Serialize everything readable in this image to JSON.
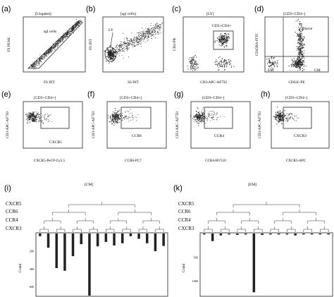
{
  "panels": {
    "a": {
      "letter": "(a)",
      "title": "[Ungated]",
      "gate": "sgl cells",
      "xlabel": "FS INT",
      "ylabel": "FS PEAK",
      "xticks": [
        "0",
        "200",
        "400",
        "600",
        "800",
        "1000"
      ],
      "yticks": [
        "200",
        "400",
        "600",
        "800",
        "1000"
      ]
    },
    "b": {
      "letter": "(b)",
      "title": "[sgl cells]",
      "gate": "LY",
      "xlabel": "SS INT",
      "ylabel": "FS INT",
      "xticks": [
        "0",
        "200",
        "400",
        "600",
        "800",
        "1000"
      ],
      "yticks": [
        "200",
        "400",
        "600",
        "800",
        "1000"
      ]
    },
    "c": {
      "letter": "(c)",
      "title": "[LY]",
      "gate": "CD3+CD4+",
      "xlabel": "CD3-APC-AF750",
      "ylabel": "CD4-PB"
    },
    "d": {
      "letter": "(d)",
      "title": "[CD3+CD4+]",
      "xlabel": "CD62L-PE",
      "ylabel": "CD45RA-FITC",
      "quadrants": [
        "Naive",
        "EM",
        "CM"
      ]
    },
    "e": {
      "letter": "(e)",
      "title": "[CD3+CD4+]",
      "gate": "CXCR5",
      "xlabel": "CXCR5-PeCP-Cy5.5",
      "ylabel": "CD3-APC-AF750"
    },
    "f": {
      "letter": "(f)",
      "title": "[CD3+CD4+]",
      "gate": "CCR6",
      "xlabel": "CCR6-PC7",
      "ylabel": "CD3-APC-AF750"
    },
    "g": {
      "letter": "(g)",
      "title": "[CD3+CD4+]",
      "gate": "CCR4",
      "xlabel": "CCR4-BV510",
      "ylabel": "CD3-APC-AF750"
    },
    "h": {
      "letter": "(h)",
      "title": "[CD3+CD4+]",
      "gate": "CXCR3",
      "xlabel": "CXCR3-APC",
      "ylabel": "CD3-APC-AF750"
    }
  },
  "bars": {
    "i": {
      "letter": "(i)",
      "title": "[CM]",
      "ylabel": "Count",
      "yticks": [
        "200",
        "400",
        "600"
      ],
      "rows": [
        "CXCR5",
        "CCR6",
        "CCR4",
        "CXCR3"
      ]
    },
    "k": {
      "letter": "(k)",
      "title": "[EM]",
      "ylabel": "Count",
      "yticks": [
        "500",
        "1000"
      ],
      "rows": [
        "CXCR5",
        "CCR6",
        "CCR4",
        "CXCR3"
      ]
    }
  },
  "chart_data": [
    {
      "type": "bar",
      "title": "[CM]",
      "ylabel": "Count",
      "ylim": [
        0,
        700
      ],
      "values": [
        30,
        160,
        390,
        420,
        255,
        120,
        700,
        145,
        95,
        135,
        110,
        30,
        60,
        110,
        200,
        140
      ]
    },
    {
      "type": "bar",
      "title": "[EM]",
      "ylabel": "Count",
      "ylim": [
        0,
        1300
      ],
      "values": [
        20,
        160,
        40,
        20,
        30,
        20,
        1230,
        30,
        20,
        20,
        20,
        40,
        20,
        20,
        20,
        20
      ]
    }
  ]
}
